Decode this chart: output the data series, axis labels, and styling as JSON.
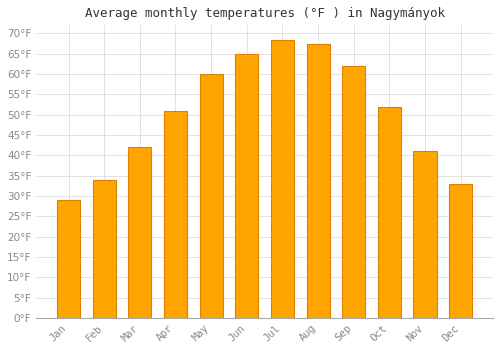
{
  "title": "Average monthly temperatures (°F ) in Nagymányok",
  "months": [
    "Jan",
    "Feb",
    "Mar",
    "Apr",
    "May",
    "Jun",
    "Jul",
    "Aug",
    "Sep",
    "Oct",
    "Nov",
    "Dec"
  ],
  "values": [
    29,
    34,
    42,
    51,
    60,
    65,
    68.5,
    67.5,
    62,
    52,
    41,
    33
  ],
  "bar_color_main": "#FFA500",
  "bar_color_light": "#FFD070",
  "bar_color_dark": "#E08000",
  "background_color": "#FFFFFF",
  "grid_color": "#DDDDDD",
  "text_color": "#888888",
  "ylim": [
    0,
    72
  ],
  "yticks": [
    0,
    5,
    10,
    15,
    20,
    25,
    30,
    35,
    40,
    45,
    50,
    55,
    60,
    65,
    70
  ],
  "title_fontsize": 9,
  "tick_fontsize": 7.5,
  "bar_width": 0.65
}
